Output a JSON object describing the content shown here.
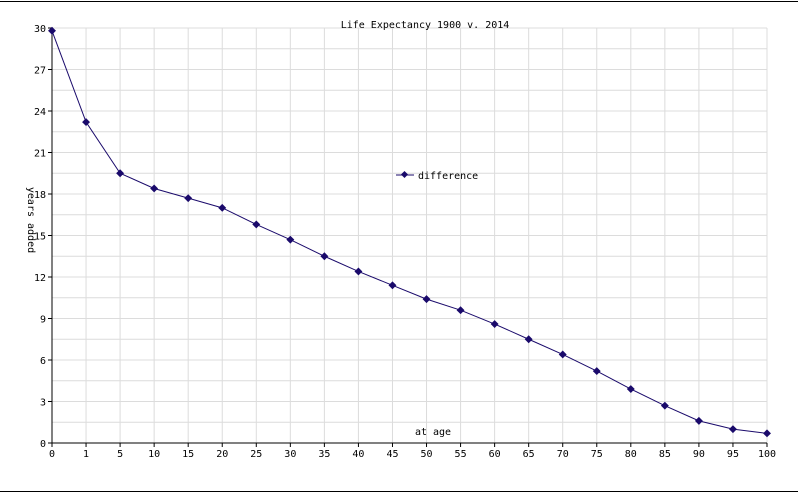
{
  "chart_data": {
    "type": "line",
    "title": "Life Expectancy 1900 v. 2014",
    "xlabel": "at age",
    "ylabel": "years added",
    "categories": [
      "0",
      "1",
      "5",
      "10",
      "15",
      "20",
      "25",
      "30",
      "35",
      "40",
      "45",
      "50",
      "55",
      "60",
      "65",
      "70",
      "75",
      "80",
      "85",
      "90",
      "95",
      "100"
    ],
    "series": [
      {
        "name": "difference",
        "color": "#1a0a6b",
        "values": [
          29.8,
          23.2,
          19.5,
          18.4,
          17.7,
          17.0,
          15.8,
          14.7,
          13.5,
          12.4,
          11.4,
          10.4,
          9.6,
          8.6,
          7.5,
          6.4,
          5.2,
          3.9,
          2.7,
          1.6,
          1.0,
          0.7
        ]
      }
    ],
    "ylim": [
      0,
      30
    ],
    "yticks": [
      "0",
      "3",
      "6",
      "9",
      "12",
      "15",
      "18",
      "21",
      "24",
      "27",
      "30"
    ],
    "grid": true,
    "legend": "center-right of plot"
  }
}
